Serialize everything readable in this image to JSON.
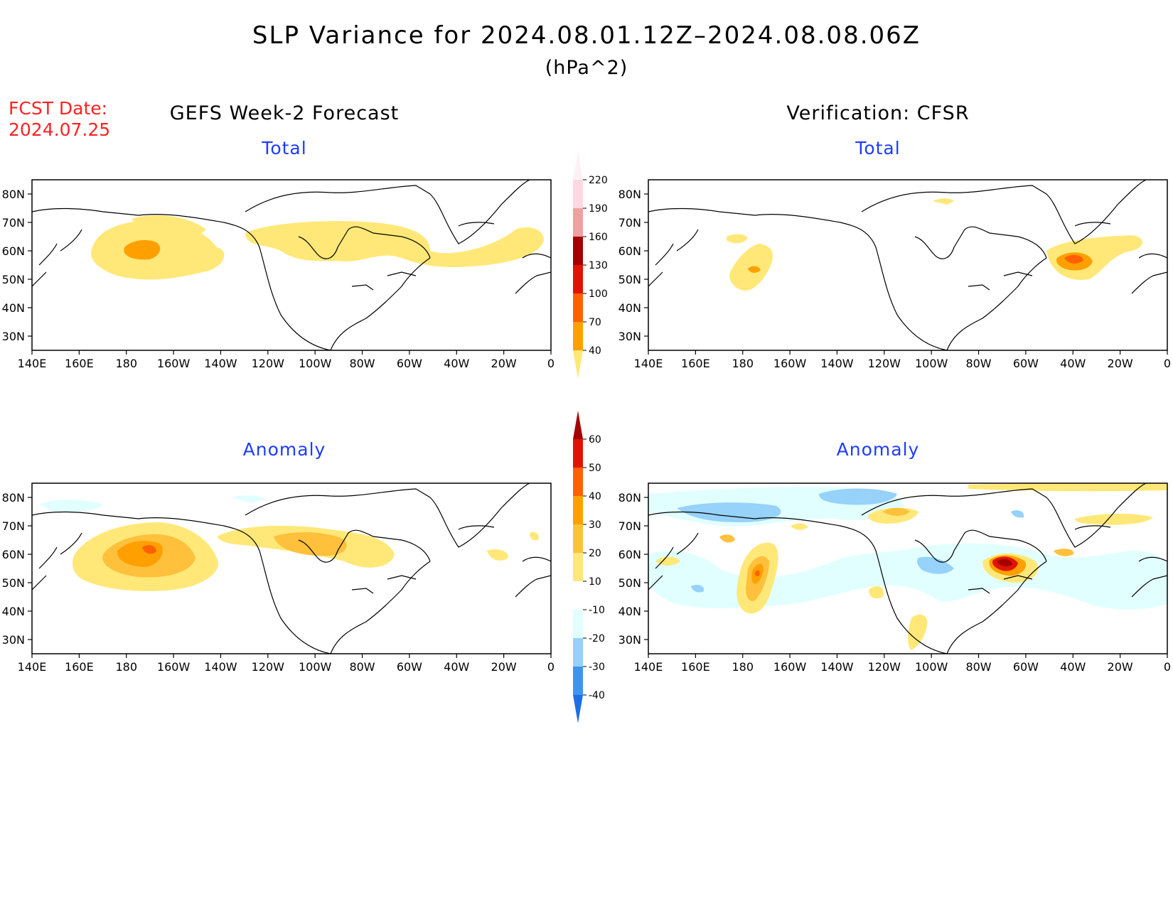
{
  "header": {
    "title": "SLP Variance for 2024.08.01.12Z–2024.08.08.06Z",
    "units": "(hPa^2)",
    "fcst_label": "FCST Date:",
    "fcst_date": "2024.07.25"
  },
  "columns": {
    "left_title": "GEFS Week-2 Forecast",
    "right_title": "Verification: CFSR"
  },
  "panels": {
    "top_left_title": "Total",
    "top_right_title": "Total",
    "bottom_left_title": "Anomaly",
    "bottom_right_title": "Anomaly"
  },
  "axes": {
    "lat_labels": [
      "80N",
      "70N",
      "60N",
      "50N",
      "40N",
      "30N"
    ],
    "lon_labels": [
      "140E",
      "160E",
      "180",
      "160W",
      "140W",
      "120W",
      "100W",
      "80W",
      "60W",
      "40W",
      "20W",
      "0"
    ]
  },
  "colorbars": {
    "total": {
      "levels": [
        "40",
        "70",
        "100",
        "130",
        "160",
        "190",
        "220"
      ],
      "colors": [
        "#ffe878",
        "#ffa000",
        "#ff6000",
        "#e11400",
        "#a50000",
        "#f0a0a0",
        "#ffd8e0",
        "#fff0f4"
      ]
    },
    "anomaly": {
      "levels": [
        "-40",
        "-30",
        "-20",
        "-10",
        "10",
        "20",
        "30",
        "40",
        "50",
        "60"
      ],
      "colors": [
        "#1e6ee6",
        "#3c96f0",
        "#96d2fa",
        "#e1ffff",
        "#ffffff",
        "#ffe878",
        "#ffc03c",
        "#ffa000",
        "#ff6000",
        "#e11400",
        "#a50000"
      ]
    }
  }
}
